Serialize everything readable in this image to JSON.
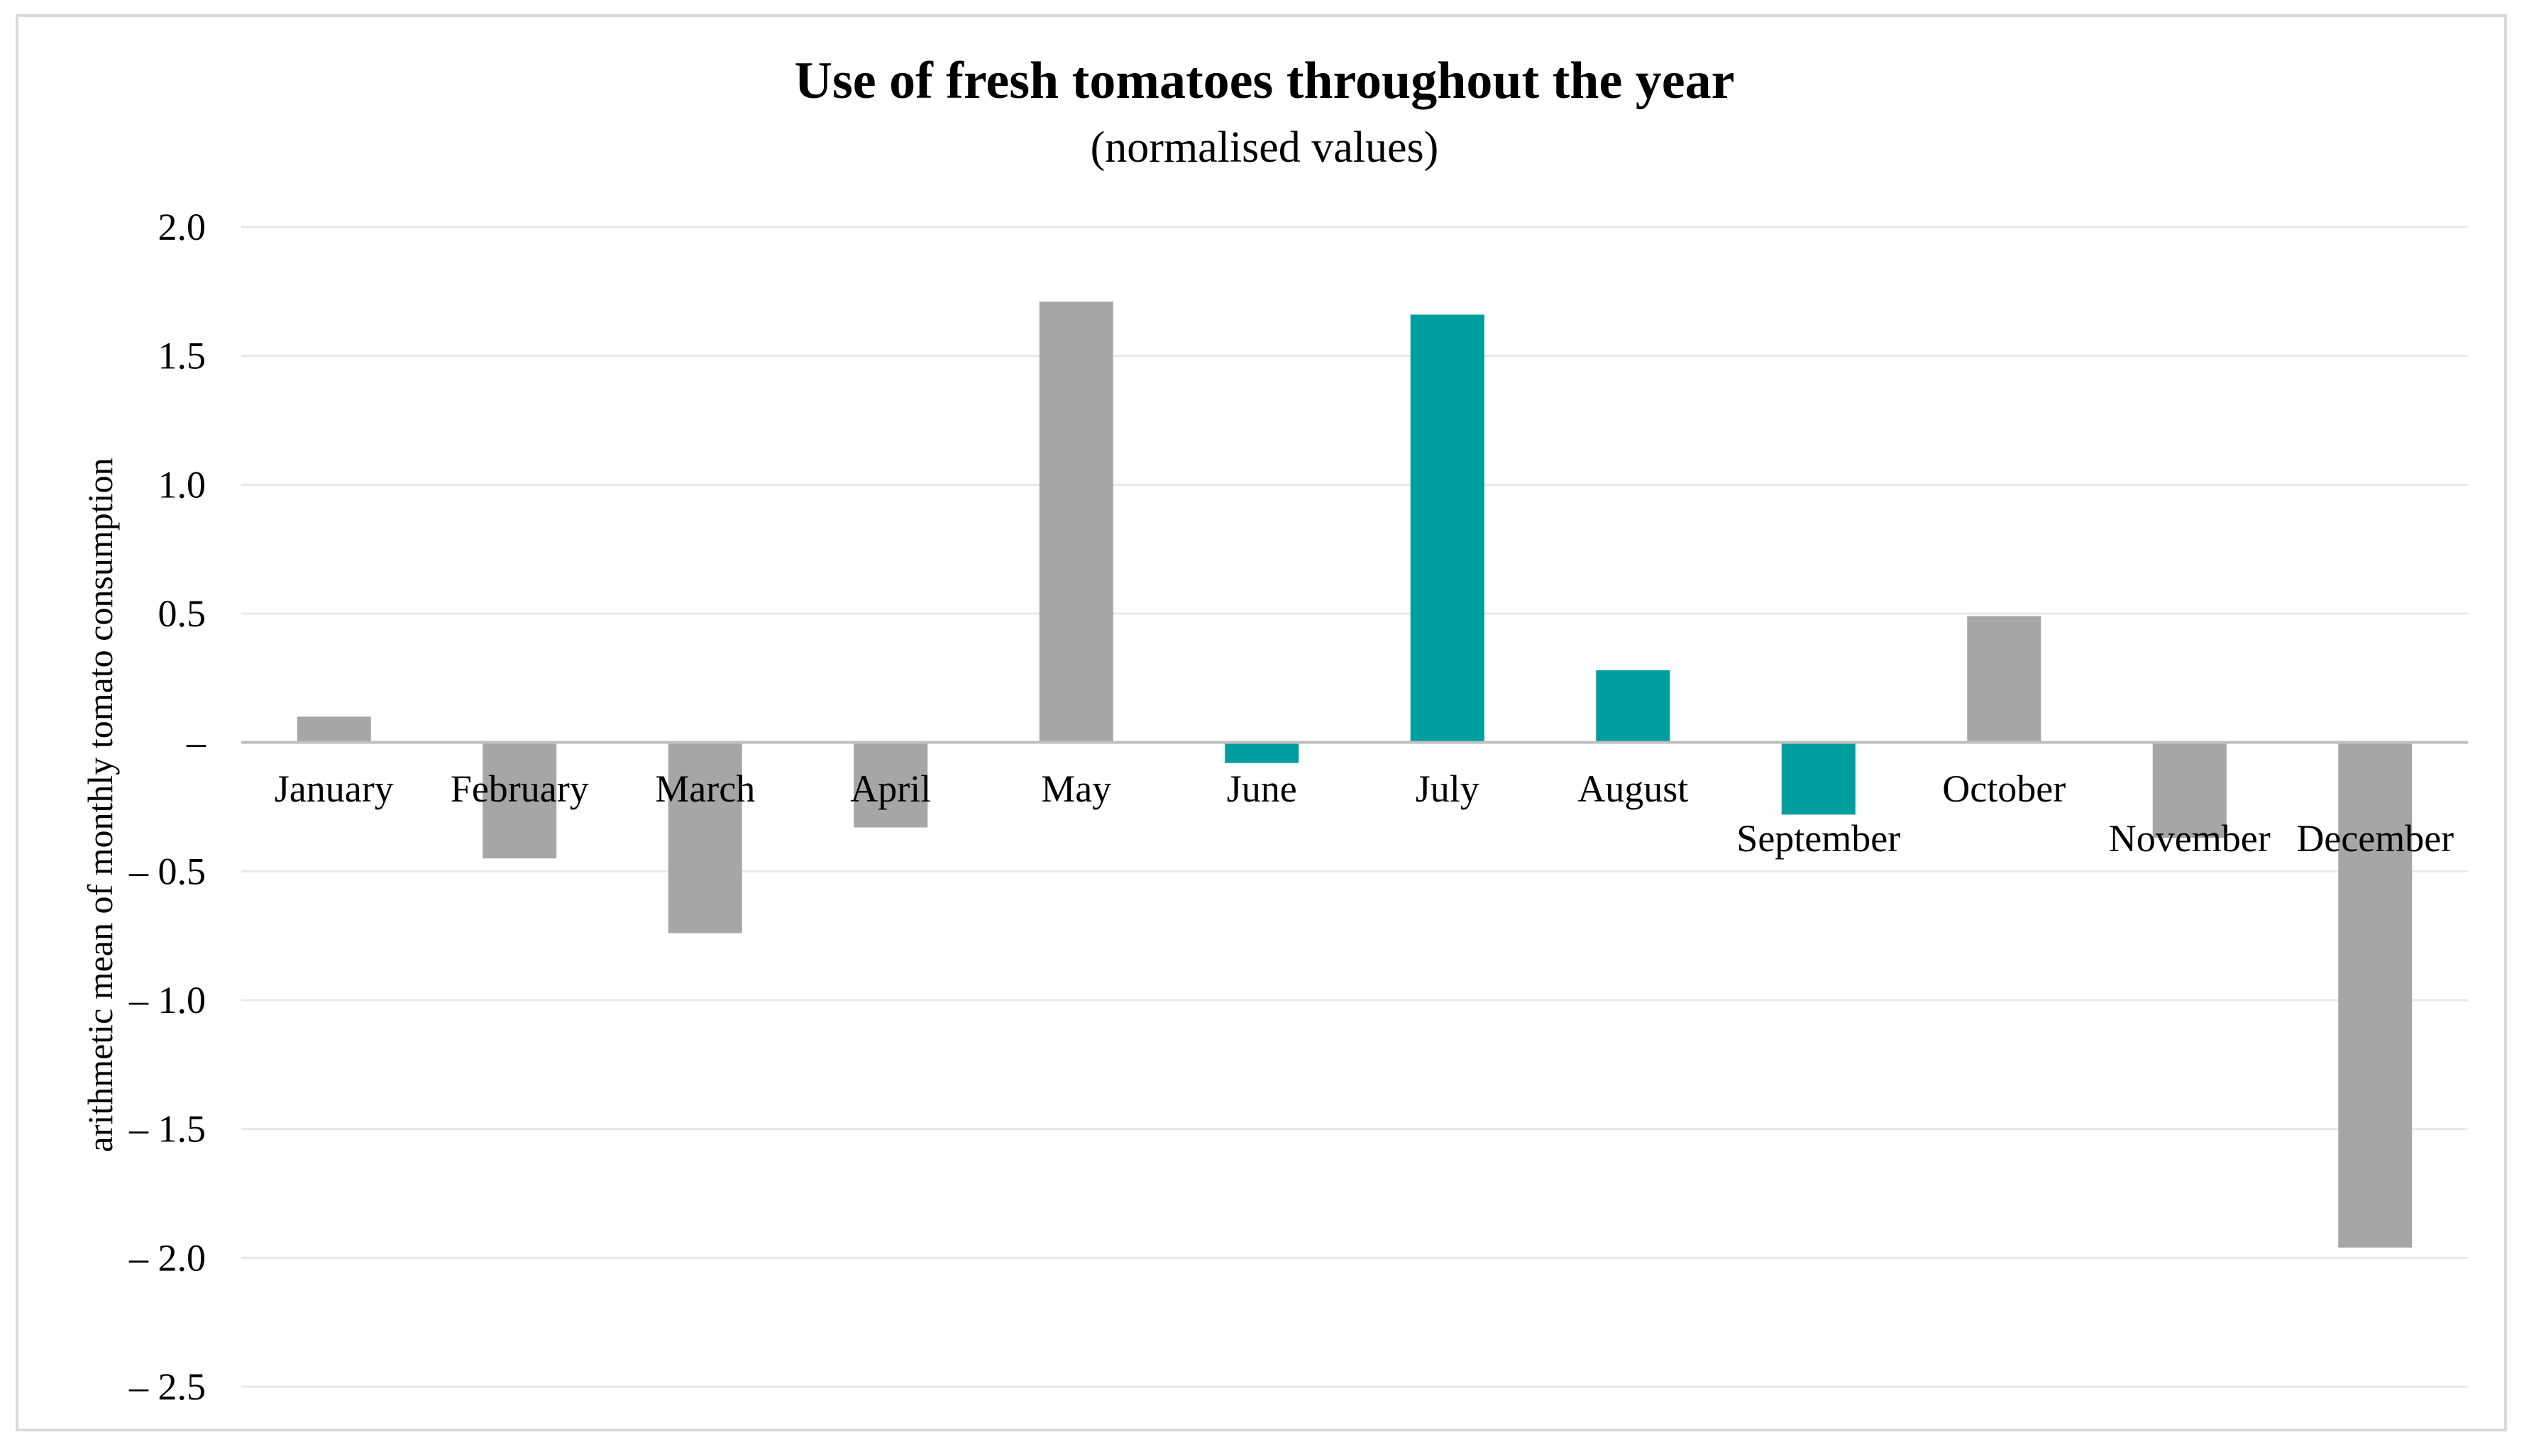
{
  "chart_data": {
    "type": "bar",
    "title": "Use of fresh tomatoes throughout the year",
    "subtitle": "(normalised values)",
    "xlabel": "",
    "ylabel": "arithmetic mean of monthly tomato consumption",
    "ylim": [
      -2.5,
      2.0
    ],
    "yticks": [
      2.0,
      1.5,
      1.0,
      0.5,
      0,
      -0.5,
      -1.0,
      -1.5,
      -2.0,
      -2.5
    ],
    "ytick_labels": [
      "2.0",
      "1.5",
      "1.0",
      "0.5",
      "–",
      "– 0.5",
      "– 1.0",
      "– 1.5",
      "– 2.0",
      "– 2.5"
    ],
    "grid": true,
    "categories": [
      "January",
      "February",
      "March",
      "April",
      "May",
      "June",
      "July",
      "August",
      "September",
      "October",
      "November",
      "December"
    ],
    "values": [
      0.1,
      -0.45,
      -0.74,
      -0.33,
      1.71,
      -0.08,
      1.66,
      0.28,
      -0.28,
      0.49,
      -0.37,
      -1.96
    ],
    "highlighted": [
      "June",
      "July",
      "August",
      "September"
    ],
    "colors": {
      "default": "#a6a6a6",
      "highlight": "#009e9e",
      "grid": "#e8e8e8",
      "axis": "#bfbfbf"
    }
  }
}
